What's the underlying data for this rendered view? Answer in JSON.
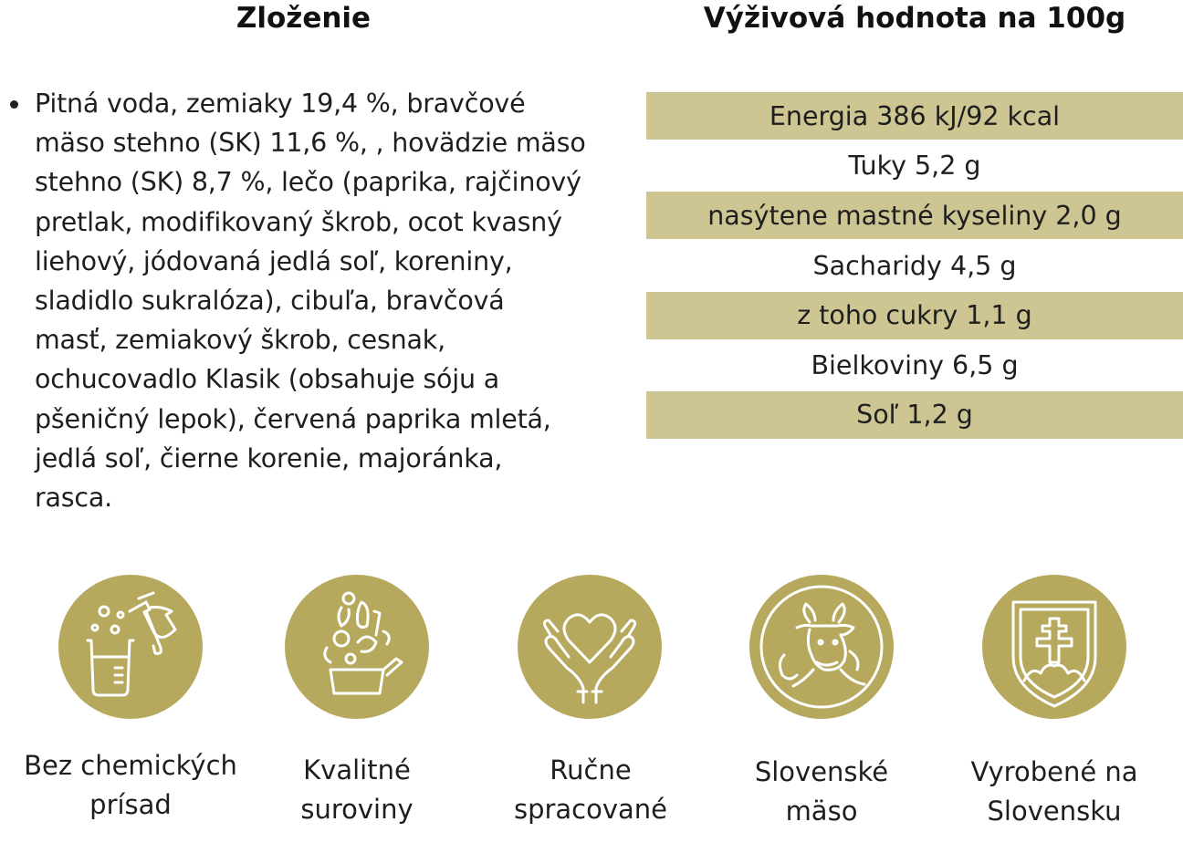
{
  "composition": {
    "heading": "Zloženie",
    "text_lines": [
      "Pitná voda, zemiaky 19,4 %, bravčové",
      "mäso stehno (SK) 11,6 %, , hovädzie mäso",
      "stehno (SK) 8,7 %, lečo (paprika, rajčinový",
      "pretlak, modifikovaný škrob, ocot kvasný",
      "liehový, jódovaná jedlá soľ, koreniny,",
      "sladidlo sukralóza), cibuľa, bravčová",
      "masť, zemiakový škrob, cesnak,",
      "ochucovadlo Klasik (obsahuje sóju a",
      "pšeničný lepok), červená paprika mletá,",
      "jedlá soľ, čierne korenie, majoránka,",
      "rasca."
    ]
  },
  "nutrition": {
    "heading": "Výživová hodnota na 100g",
    "rows": [
      {
        "text": "Energia 386 kJ/92 kcal",
        "shaded": true
      },
      {
        "text": "Tuky 5,2 g",
        "shaded": false
      },
      {
        "text": "nasýtene mastné kyseliny 2,0 g",
        "shaded": true
      },
      {
        "text": "Sacharidy 4,5 g",
        "shaded": false
      },
      {
        "text": "z toho cukry 1,1 g",
        "shaded": true
      },
      {
        "text": "Bielkoviny 6,5 g",
        "shaded": false
      },
      {
        "text": "Soľ 1,2 g",
        "shaded": true
      }
    ]
  },
  "features": [
    {
      "icon": "lab-flask-icon",
      "label_lines": [
        "Bez chemických",
        "prísad"
      ]
    },
    {
      "icon": "vegetables-icon",
      "label_lines": [
        "Kvalitné",
        "suroviny"
      ]
    },
    {
      "icon": "heart-hands-icon",
      "label_lines": [
        "Ručne",
        "spracované"
      ]
    },
    {
      "icon": "cow-icon",
      "label_lines": [
        "Slovenské",
        "mäso"
      ]
    },
    {
      "icon": "slovak-coat-of-arms-icon",
      "label_lines": [
        "Vyrobené na",
        "Slovensku"
      ]
    }
  ],
  "colors": {
    "row_shade": "#cdc692",
    "icon_circle": "#b6a95d",
    "icon_stroke": "#ffffff"
  }
}
